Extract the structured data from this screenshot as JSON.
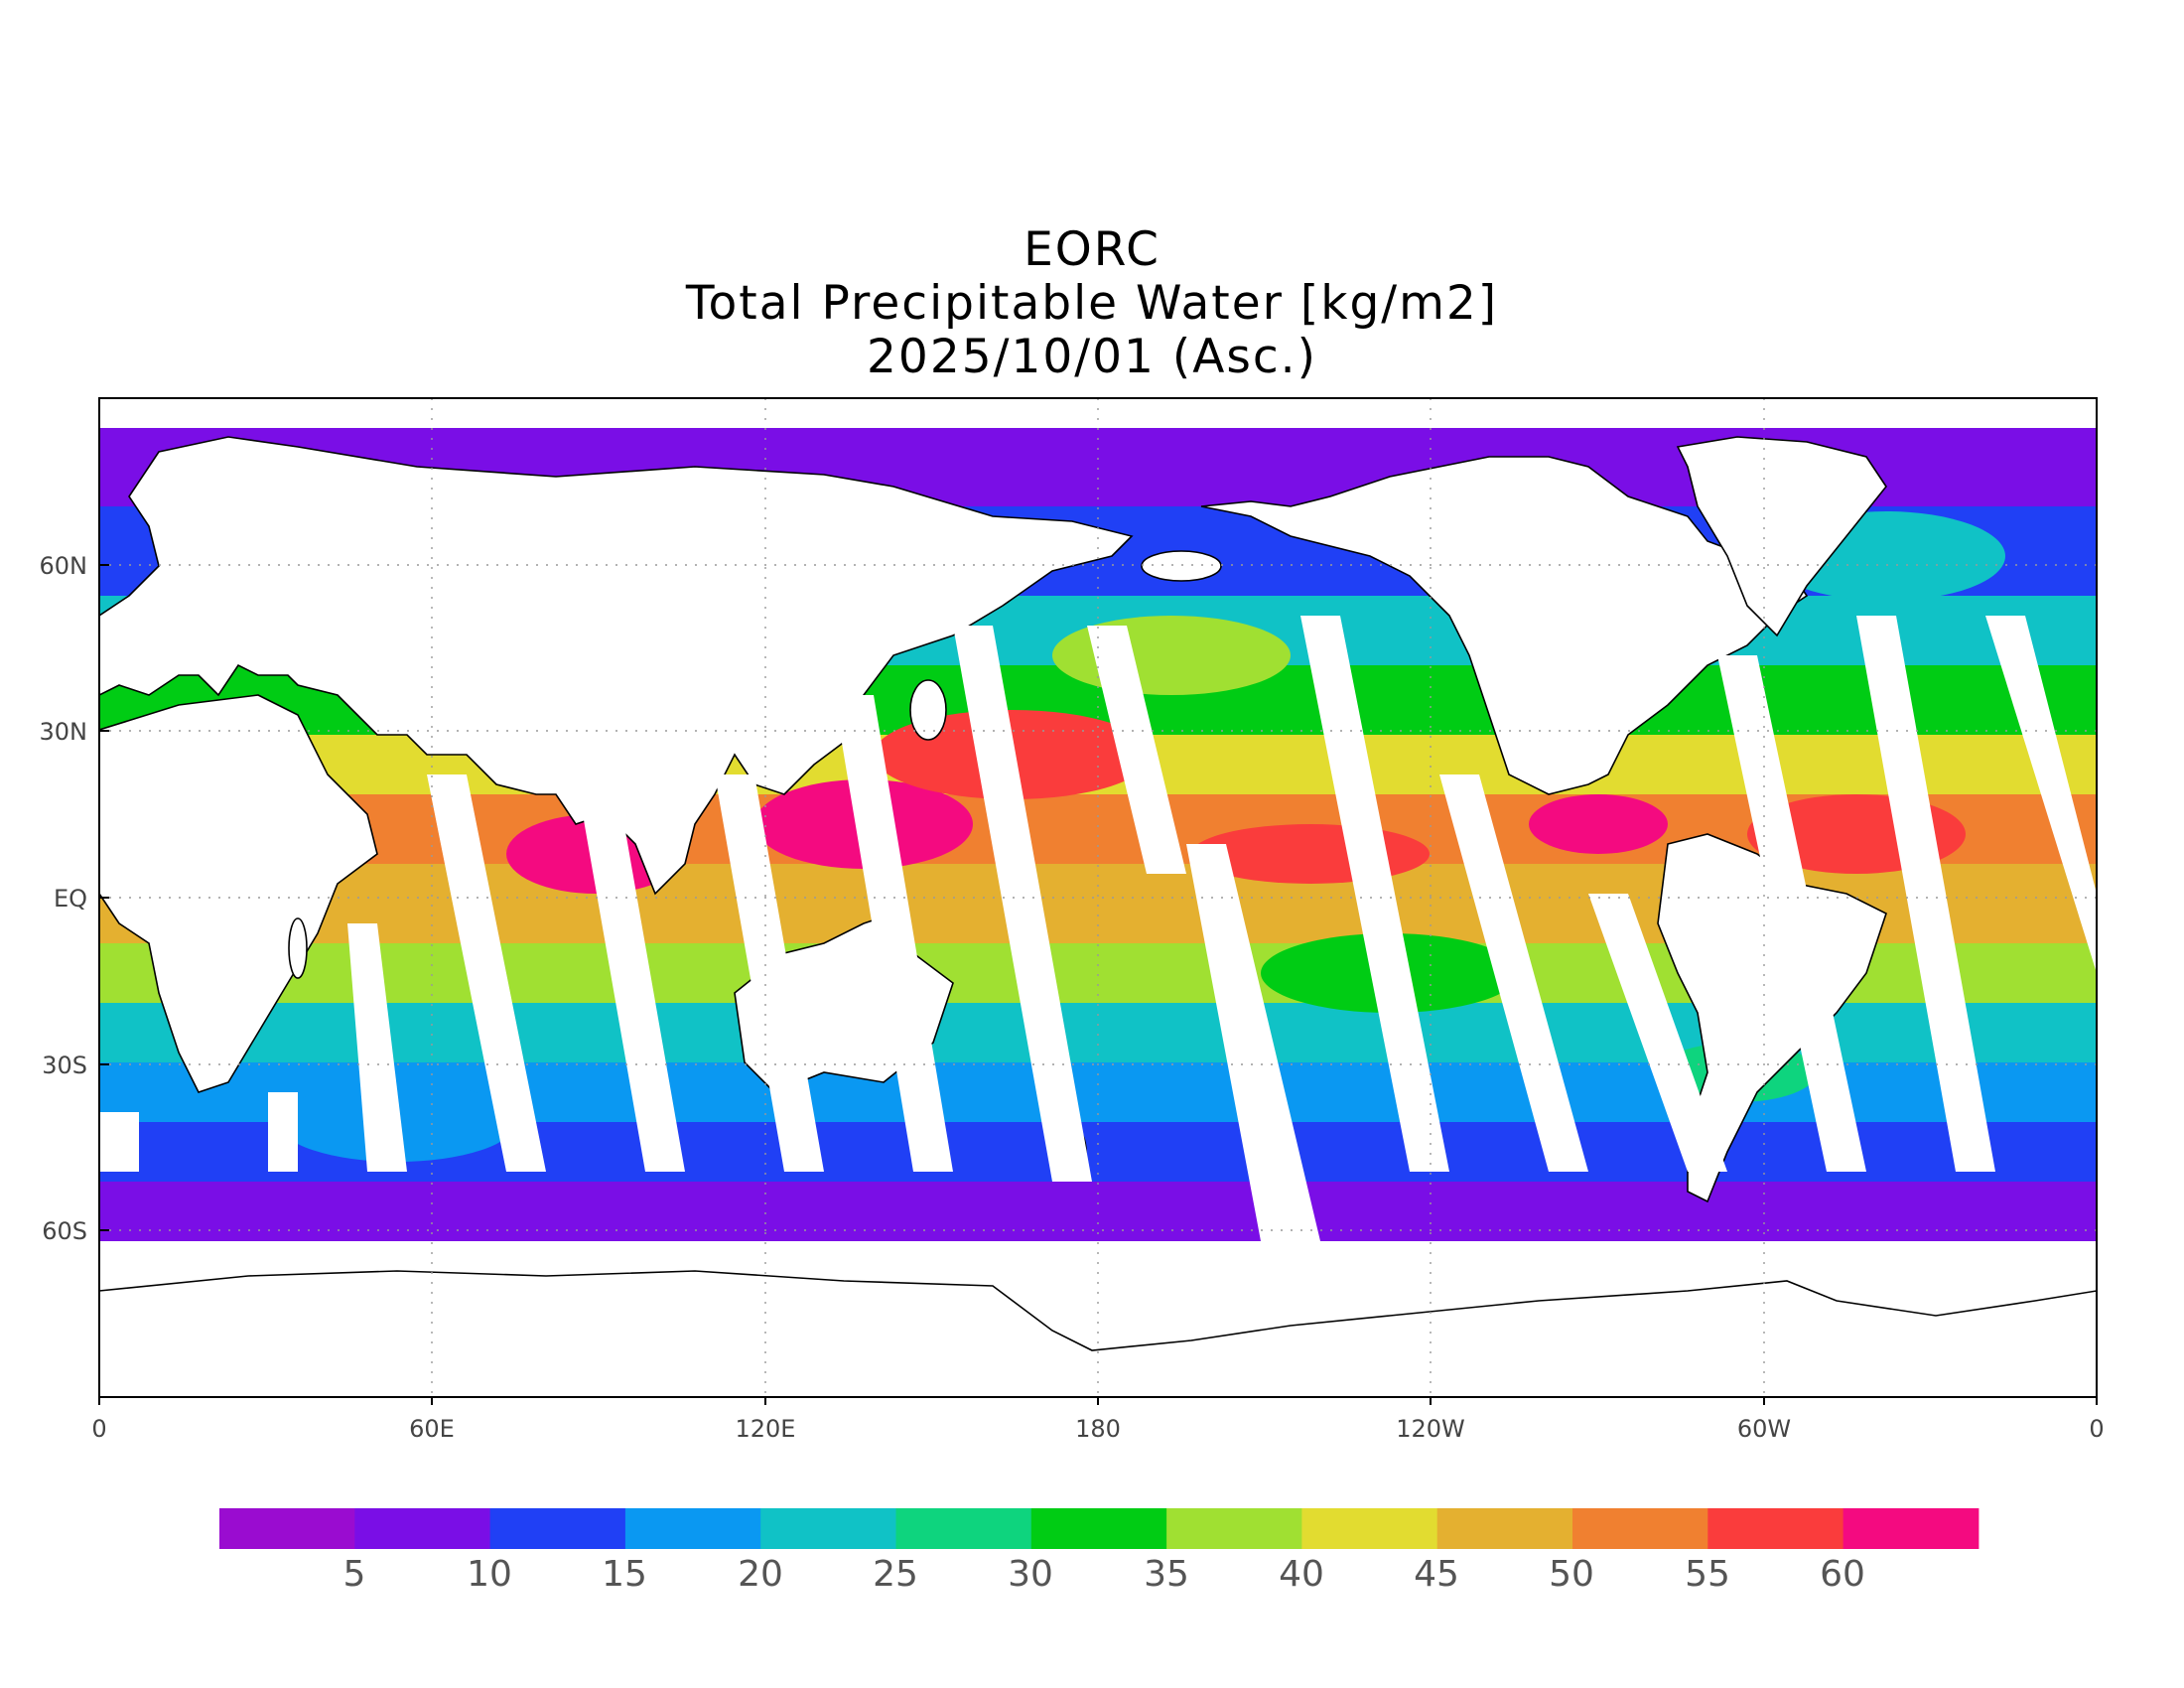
{
  "title": {
    "line1": "EORC",
    "line2": "Total Precipitable Water [kg/m2]",
    "line3": "2025/10/01 (Asc.)"
  },
  "x_axis": {
    "tick_labels": [
      "0",
      "60E",
      "120E",
      "180",
      "120W",
      "60W",
      "0"
    ],
    "lon_values": [
      0,
      60,
      120,
      180,
      240,
      300,
      360
    ]
  },
  "y_axis": {
    "tick_labels": [
      "60N",
      "30N",
      "EQ",
      "30S",
      "60S"
    ],
    "lat_values": [
      60,
      30,
      0,
      -30,
      -60
    ]
  },
  "colorbar": {
    "labels": [
      "5",
      "10",
      "15",
      "20",
      "25",
      "30",
      "35",
      "40",
      "45",
      "50",
      "55",
      "60"
    ],
    "colors": [
      "#9a0cd0",
      "#7a0ee6",
      "#2040f5",
      "#0a98f2",
      "#10c2c6",
      "#0ed47e",
      "#00cc14",
      "#a0e032",
      "#e2dc30",
      "#e4b030",
      "#f08030",
      "#fa3c3c",
      "#f40a80"
    ]
  },
  "map_colors": {
    "land": "#ffffff",
    "coast": "#000000",
    "gap": "#ffffff"
  }
}
